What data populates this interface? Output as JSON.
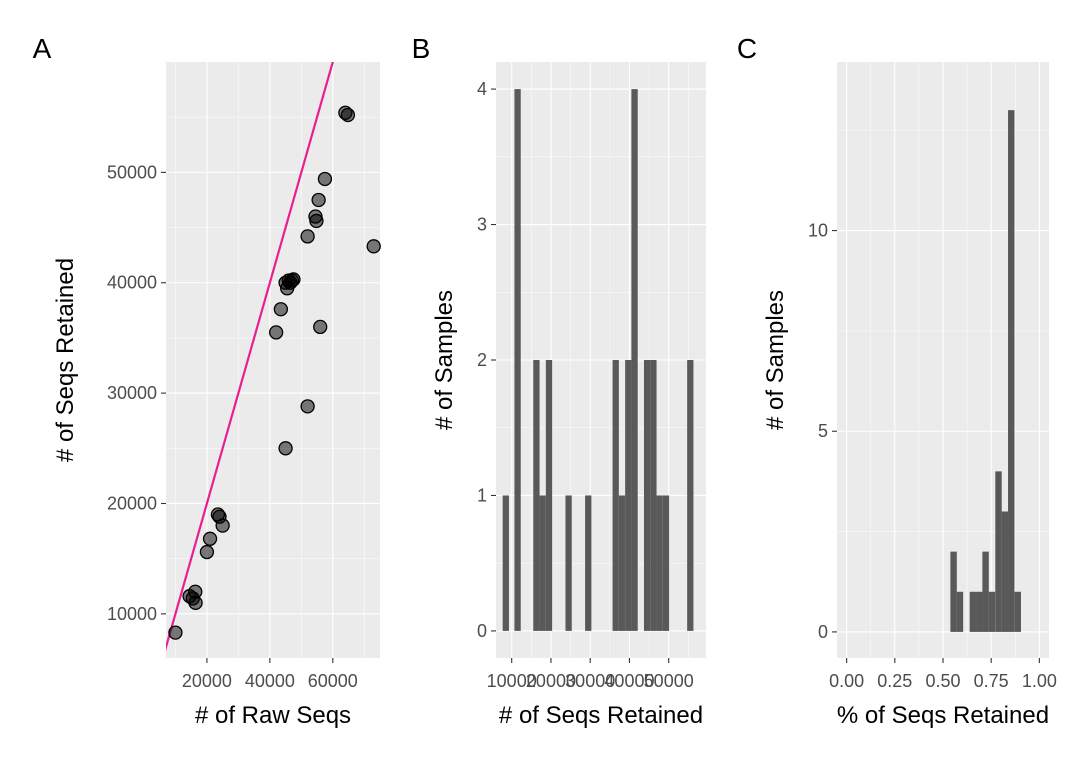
{
  "chart_data": [
    {
      "type": "scatter",
      "tag": "A",
      "xlabel": "# of Raw Seqs",
      "ylabel": "# of Seqs Retained",
      "xlim": [
        7000,
        75000
      ],
      "ylim": [
        6000,
        60000
      ],
      "x_ticks": [
        20000,
        40000,
        60000
      ],
      "x_tick_labels": [
        "20000",
        "40000",
        "60000"
      ],
      "y_ticks": [
        10000,
        20000,
        30000,
        40000,
        50000
      ],
      "y_tick_labels": [
        "10000",
        "20000",
        "30000",
        "40000",
        "50000"
      ],
      "grid": true,
      "line_color": "#e7208f",
      "points": [
        {
          "x": 10000,
          "y": 8300
        },
        {
          "x": 14500,
          "y": 11600
        },
        {
          "x": 15500,
          "y": 11400
        },
        {
          "x": 16300,
          "y": 12000
        },
        {
          "x": 16400,
          "y": 11000
        },
        {
          "x": 20000,
          "y": 15600
        },
        {
          "x": 21000,
          "y": 16800
        },
        {
          "x": 23500,
          "y": 19000
        },
        {
          "x": 24000,
          "y": 18800
        },
        {
          "x": 25000,
          "y": 18000
        },
        {
          "x": 42000,
          "y": 35500
        },
        {
          "x": 43500,
          "y": 37600
        },
        {
          "x": 45000,
          "y": 25000
        },
        {
          "x": 45000,
          "y": 40000
        },
        {
          "x": 45500,
          "y": 39500
        },
        {
          "x": 46000,
          "y": 40200
        },
        {
          "x": 46500,
          "y": 40000
        },
        {
          "x": 47000,
          "y": 40200
        },
        {
          "x": 47500,
          "y": 40300
        },
        {
          "x": 52000,
          "y": 44200
        },
        {
          "x": 52000,
          "y": 28800
        },
        {
          "x": 54500,
          "y": 46000
        },
        {
          "x": 54800,
          "y": 45600
        },
        {
          "x": 55500,
          "y": 47500
        },
        {
          "x": 56000,
          "y": 36000
        },
        {
          "x": 57500,
          "y": 49400
        },
        {
          "x": 64000,
          "y": 55400
        },
        {
          "x": 64800,
          "y": 55200
        },
        {
          "x": 73000,
          "y": 43300
        }
      ]
    },
    {
      "type": "bar",
      "tag": "B",
      "xlabel": "# of Seqs Retained",
      "ylabel": "# of Samples",
      "xlim": [
        6000,
        59500
      ],
      "ylim": [
        -0.2,
        4.2
      ],
      "bin_width": 1600,
      "x_ticks": [
        10000,
        20000,
        30000,
        40000,
        50000
      ],
      "x_tick_labels": [
        "10000",
        "20000",
        "30000",
        "40000",
        "50000"
      ],
      "y_ticks": [
        0,
        1,
        2,
        3,
        4
      ],
      "y_tick_labels": [
        "0",
        "1",
        "2",
        "3",
        "4"
      ],
      "grid": true,
      "bin_centers": [
        8500,
        11500,
        16300,
        17900,
        19500,
        24500,
        29500,
        36500,
        38100,
        39700,
        41300,
        44500,
        46100,
        47700,
        49300,
        55500
      ],
      "values": [
        1,
        4,
        2,
        1,
        2,
        1,
        1,
        2,
        1,
        2,
        4,
        2,
        2,
        1,
        1,
        2
      ]
    },
    {
      "type": "bar",
      "tag": "C",
      "xlabel": "% of Seqs Retained",
      "ylabel": "# of Samples",
      "xlim": [
        -0.05,
        1.05
      ],
      "ylim": [
        -0.65,
        14.2
      ],
      "bin_width": 0.0333,
      "x_ticks": [
        0.0,
        0.25,
        0.5,
        0.75,
        1.0
      ],
      "x_tick_labels": [
        "0.00",
        "0.25",
        "0.50",
        "0.75",
        "1.00"
      ],
      "y_ticks": [
        0,
        5,
        10
      ],
      "y_tick_labels": [
        "0",
        "5",
        "10"
      ],
      "grid": true,
      "bin_centers": [
        0.555,
        0.588,
        0.655,
        0.688,
        0.721,
        0.754,
        0.788,
        0.821,
        0.854,
        0.888
      ],
      "values": [
        2,
        1,
        1,
        1,
        2,
        1,
        4,
        3,
        13,
        1
      ]
    }
  ]
}
